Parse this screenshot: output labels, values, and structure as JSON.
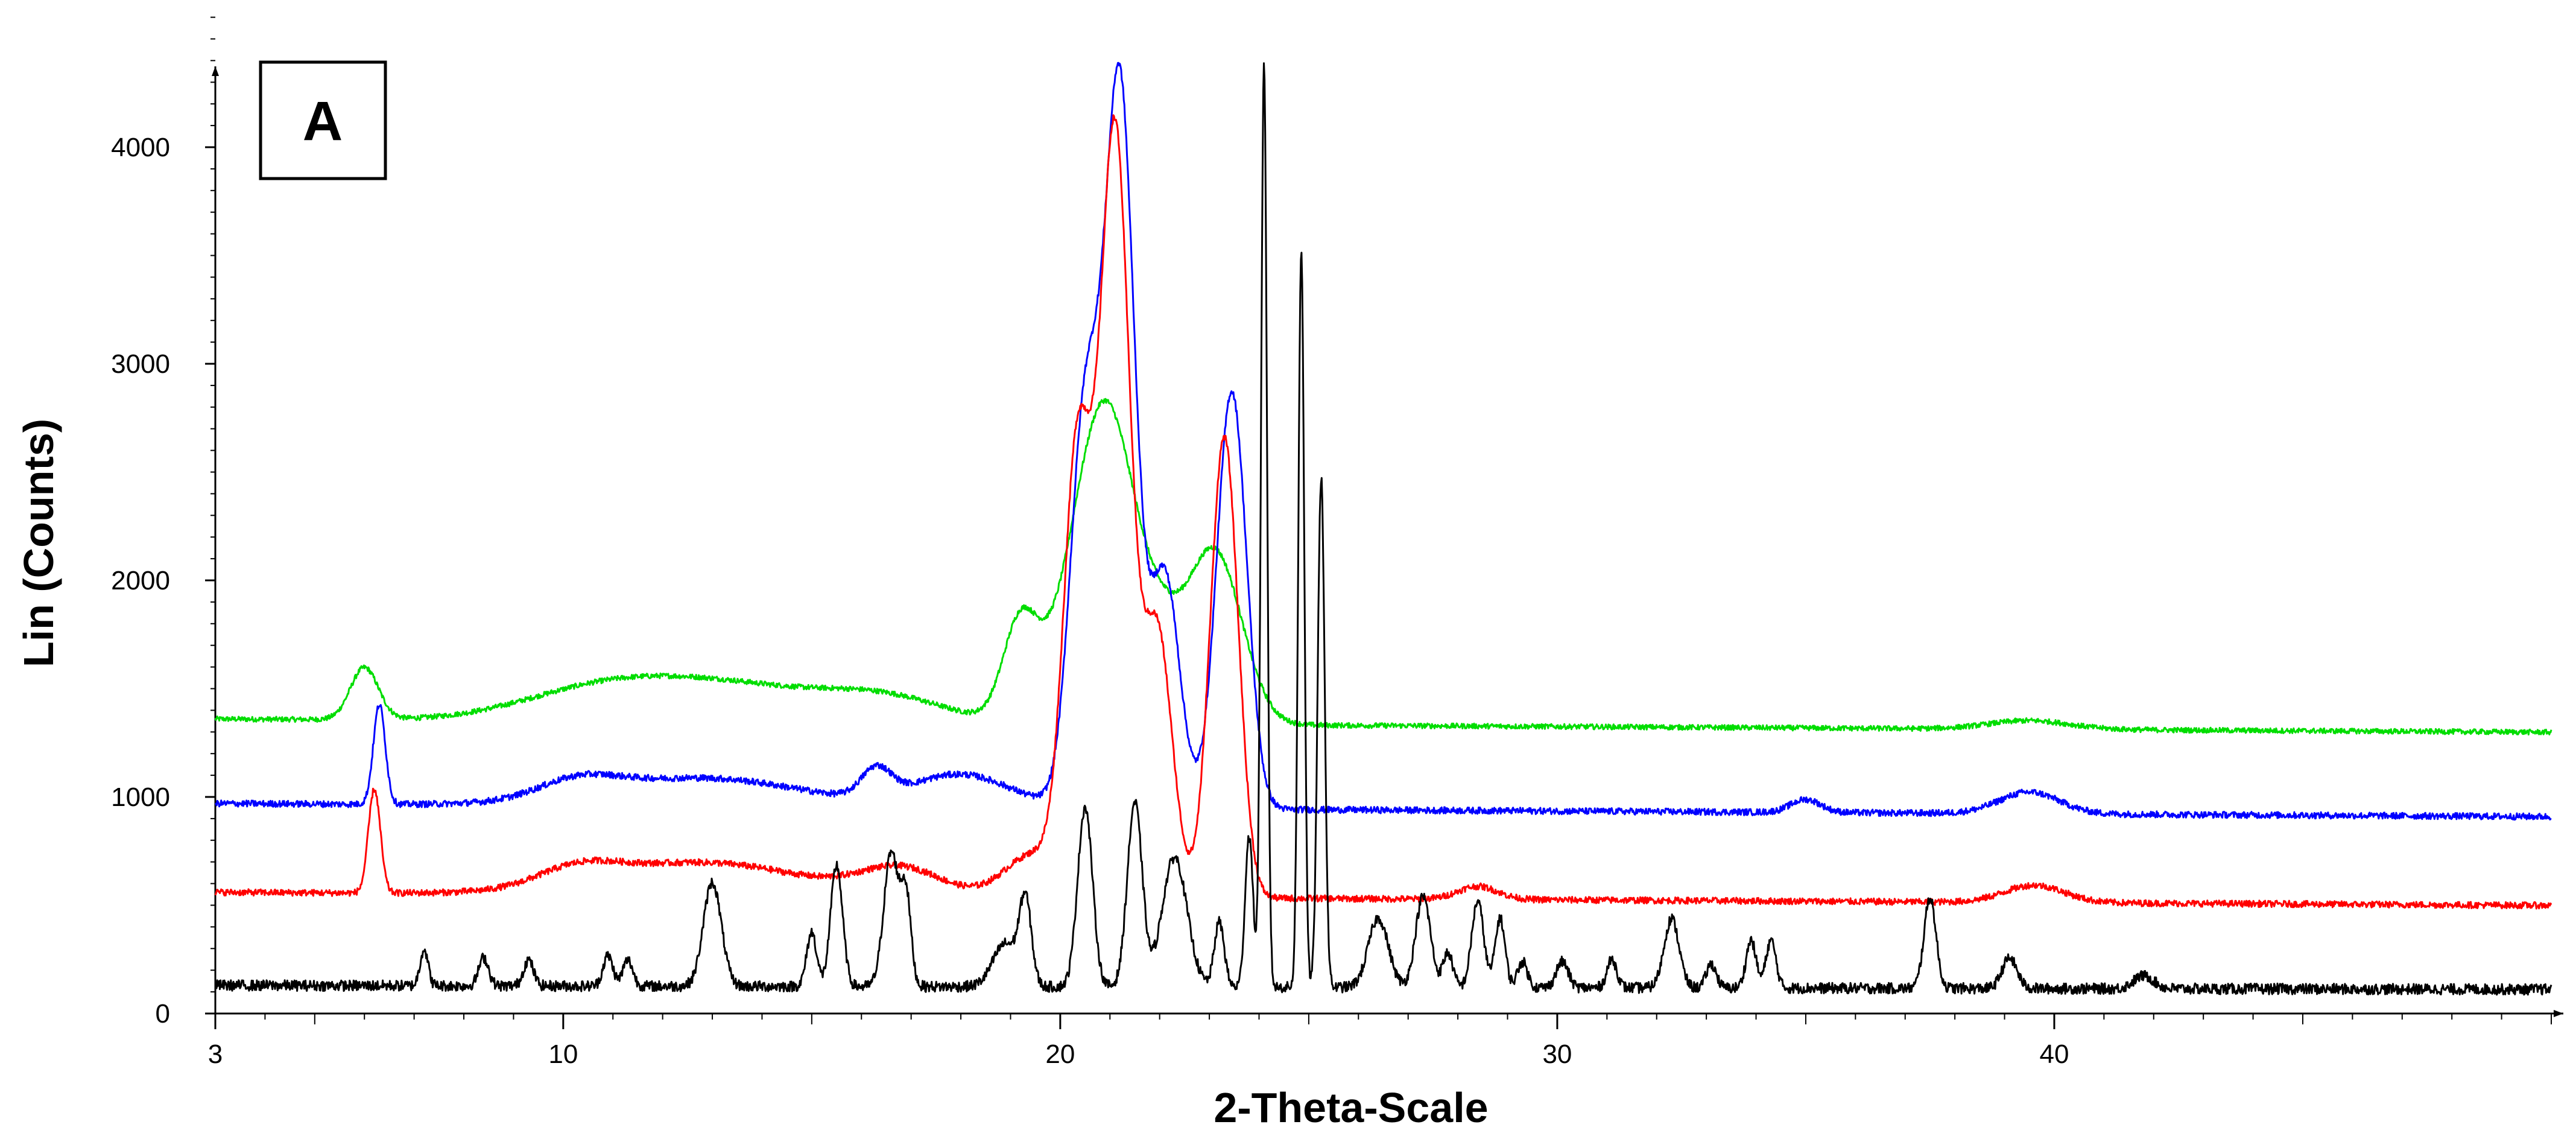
{
  "chart_data": {
    "type": "line",
    "panel_label": "A",
    "xlabel": "2-Theta-Scale",
    "ylabel": "Lin (Counts)",
    "xlim": [
      3,
      50
    ],
    "ylim": [
      0,
      4600
    ],
    "x_ticks": [
      3,
      10,
      20,
      30,
      40
    ],
    "y_ticks": [
      0,
      1000,
      2000,
      3000,
      4000
    ],
    "grid": false,
    "colors": {
      "black": "#000000",
      "red": "#ff0000",
      "blue": "#0000ff",
      "green": "#00dd00"
    },
    "series": [
      {
        "color": "black",
        "baseline": 130,
        "noise": 25,
        "peaks": [
          [
            7.2,
            170,
            0.08
          ],
          [
            8.4,
            130,
            0.1
          ],
          [
            9.3,
            120,
            0.1
          ],
          [
            10.9,
            140,
            0.1
          ],
          [
            11.3,
            120,
            0.1
          ],
          [
            13.0,
            480,
            0.18
          ],
          [
            15.0,
            250,
            0.1
          ],
          [
            15.5,
            560,
            0.12
          ],
          [
            16.6,
            620,
            0.15
          ],
          [
            16.9,
            400,
            0.1
          ],
          [
            18.9,
            200,
            0.25
          ],
          [
            19.3,
            380,
            0.12
          ],
          [
            20.5,
            830,
            0.15
          ],
          [
            21.5,
            850,
            0.15
          ],
          [
            22.3,
            600,
            0.25
          ],
          [
            23.2,
            300,
            0.1
          ],
          [
            23.8,
            700,
            0.08
          ],
          [
            24.1,
            4250,
            0.06
          ],
          [
            24.85,
            3400,
            0.06
          ],
          [
            25.25,
            2350,
            0.07
          ],
          [
            26.4,
            320,
            0.2
          ],
          [
            27.3,
            420,
            0.15
          ],
          [
            27.8,
            160,
            0.1
          ],
          [
            28.4,
            400,
            0.12
          ],
          [
            28.85,
            320,
            0.1
          ],
          [
            29.3,
            120,
            0.1
          ],
          [
            30.1,
            120,
            0.12
          ],
          [
            31.1,
            130,
            0.1
          ],
          [
            32.3,
            320,
            0.15
          ],
          [
            33.1,
            110,
            0.1
          ],
          [
            33.9,
            220,
            0.1
          ],
          [
            34.3,
            220,
            0.1
          ],
          [
            37.5,
            420,
            0.12
          ],
          [
            39.1,
            140,
            0.15
          ],
          [
            41.8,
            60,
            0.2
          ]
        ]
      },
      {
        "color": "red",
        "baseline": 560,
        "noise": 15,
        "peaks": [
          [
            6.2,
            480,
            0.12
          ],
          [
            10.3,
            80,
            0.8
          ],
          [
            12.8,
            150,
            2.0
          ],
          [
            16.8,
            120,
            0.8
          ],
          [
            19.5,
            200,
            0.6
          ],
          [
            20.35,
            2000,
            0.28
          ],
          [
            21.1,
            3520,
            0.3
          ],
          [
            21.95,
            1230,
            0.3
          ],
          [
            23.3,
            2130,
            0.28
          ],
          [
            28.4,
            60,
            0.4
          ],
          [
            39.6,
            80,
            0.6
          ]
        ]
      },
      {
        "color": "blue",
        "baseline": 970,
        "noise": 15,
        "peaks": [
          [
            6.3,
            460,
            0.12
          ],
          [
            10.3,
            80,
            0.8
          ],
          [
            12.8,
            130,
            2.0
          ],
          [
            16.3,
            130,
            0.3
          ],
          [
            18.0,
            150,
            1.0
          ],
          [
            20.5,
            1800,
            0.3
          ],
          [
            21.2,
            3300,
            0.3
          ],
          [
            22.1,
            1080,
            0.3
          ],
          [
            23.45,
            1930,
            0.3
          ],
          [
            35.0,
            60,
            0.3
          ],
          [
            39.5,
            100,
            0.6
          ]
        ]
      },
      {
        "color": "green",
        "baseline": 1360,
        "noise": 12,
        "peaks": [
          [
            6.0,
            240,
            0.28
          ],
          [
            10.5,
            80,
            1.5
          ],
          [
            13.0,
            180,
            2.2
          ],
          [
            16.5,
            90,
            1.2
          ],
          [
            19.2,
            450,
            0.35
          ],
          [
            20.3,
            450,
            0.55
          ],
          [
            21.0,
            1250,
            0.55
          ],
          [
            22.0,
            320,
            0.45
          ],
          [
            23.1,
            800,
            0.55
          ],
          [
            39.5,
            40,
            0.8
          ]
        ]
      }
    ]
  }
}
